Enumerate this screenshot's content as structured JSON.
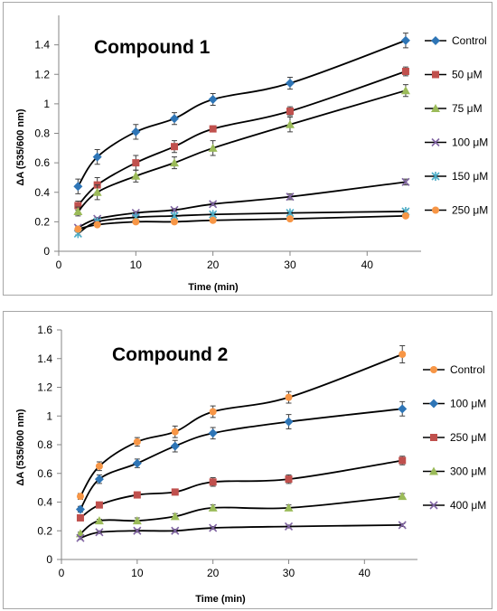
{
  "chart_data": [
    {
      "type": "line",
      "title": "Compound 1",
      "xlabel": "Time (min)",
      "ylabel": "ΔA (535/600 nm)",
      "xlim": [
        0,
        47
      ],
      "ylim": [
        0,
        1.6
      ],
      "x_ticks": [
        0,
        10,
        20,
        30,
        40
      ],
      "y_ticks": [
        0,
        0.2,
        0.4,
        0.6,
        0.8,
        1,
        1.2,
        1.4
      ],
      "y_tick_labels": [
        "0",
        "0.2",
        "0.4",
        "0.6",
        "0.8",
        "1",
        "1.2",
        "1.4"
      ],
      "grid": false,
      "legend_position": "right",
      "x": [
        2.5,
        5,
        10,
        15,
        20,
        30,
        45
      ],
      "series": [
        {
          "name": "Control",
          "color": "#2e75b6",
          "marker": "diamond",
          "values": [
            0.44,
            0.64,
            0.81,
            0.9,
            1.03,
            1.14,
            1.43
          ],
          "errors": [
            0.05,
            0.05,
            0.05,
            0.04,
            0.04,
            0.04,
            0.05
          ]
        },
        {
          "name": "50 μM",
          "color": "#c0504d",
          "marker": "square",
          "values": [
            0.31,
            0.45,
            0.6,
            0.71,
            0.83,
            0.95,
            1.22
          ],
          "errors": [
            0.03,
            0.05,
            0.05,
            0.04,
            0.02,
            0.03,
            0.03
          ]
        },
        {
          "name": "75  μM",
          "color": "#9bbb59",
          "marker": "triangle",
          "values": [
            0.27,
            0.4,
            0.51,
            0.6,
            0.7,
            0.86,
            1.09
          ],
          "errors": [
            0.03,
            0.05,
            0.04,
            0.04,
            0.05,
            0.05,
            0.04
          ]
        },
        {
          "name": "100 μM",
          "color": "#8064a2",
          "marker": "x",
          "values": [
            0.16,
            0.22,
            0.26,
            0.28,
            0.32,
            0.37,
            0.47
          ],
          "errors": [
            0.01,
            0.01,
            0.01,
            0.01,
            0.01,
            0.02,
            0.02
          ]
        },
        {
          "name": "150 μM",
          "color": "#4bacc6",
          "marker": "star",
          "values": [
            0.12,
            0.2,
            0.23,
            0.24,
            0.25,
            0.26,
            0.27
          ],
          "errors": [
            0.01,
            0.01,
            0.01,
            0.01,
            0.01,
            0.01,
            0.01
          ]
        },
        {
          "name": "250 μM",
          "color": "#f79646",
          "marker": "circle",
          "values": [
            0.15,
            0.18,
            0.2,
            0.2,
            0.21,
            0.22,
            0.24
          ],
          "errors": [
            0.01,
            0.01,
            0.01,
            0.01,
            0.01,
            0.01,
            0.01
          ]
        }
      ]
    },
    {
      "type": "line",
      "title": "Compound 2",
      "xlabel": "Time (min)",
      "ylabel": "ΔA (535/600 nm)",
      "xlim": [
        0,
        47
      ],
      "ylim": [
        0,
        1.6
      ],
      "x_ticks": [
        0,
        10,
        20,
        30,
        40
      ],
      "y_ticks": [
        0,
        0.2,
        0.4,
        0.6,
        0.8,
        1,
        1.2,
        1.4,
        1.6
      ],
      "y_tick_labels": [
        "0",
        "0.2",
        "0.4",
        "0.6",
        "0.8",
        "1",
        "1.2",
        "1.4",
        "1.6"
      ],
      "grid": false,
      "legend_position": "right",
      "x": [
        2.5,
        5,
        10,
        15,
        20,
        30,
        45
      ],
      "series": [
        {
          "name": "Control",
          "color": "#f79646",
          "marker": "circle",
          "values": [
            0.44,
            0.65,
            0.82,
            0.89,
            1.03,
            1.13,
            1.43
          ],
          "errors": [
            0.02,
            0.03,
            0.03,
            0.04,
            0.04,
            0.04,
            0.06
          ]
        },
        {
          "name": "100 μM",
          "color": "#2e75b6",
          "marker": "diamond",
          "values": [
            0.35,
            0.56,
            0.67,
            0.79,
            0.88,
            0.96,
            1.05
          ],
          "errors": [
            0.02,
            0.03,
            0.03,
            0.04,
            0.04,
            0.05,
            0.05
          ]
        },
        {
          "name": "250 μM",
          "color": "#c0504d",
          "marker": "square",
          "values": [
            0.29,
            0.38,
            0.45,
            0.47,
            0.54,
            0.56,
            0.69
          ],
          "errors": [
            0.01,
            0.01,
            0.01,
            0.02,
            0.03,
            0.03,
            0.03
          ]
        },
        {
          "name": "300 μM",
          "color": "#9bbb59",
          "marker": "triangle",
          "values": [
            0.18,
            0.27,
            0.27,
            0.3,
            0.36,
            0.36,
            0.44
          ],
          "errors": [
            0.01,
            0.01,
            0.02,
            0.02,
            0.02,
            0.02,
            0.02
          ]
        },
        {
          "name": "400 μM",
          "color": "#8064a2",
          "marker": "x",
          "values": [
            0.15,
            0.19,
            0.2,
            0.2,
            0.22,
            0.23,
            0.24
          ],
          "errors": [
            0.01,
            0.01,
            0.01,
            0.01,
            0.01,
            0.01,
            0.01
          ]
        }
      ]
    }
  ]
}
